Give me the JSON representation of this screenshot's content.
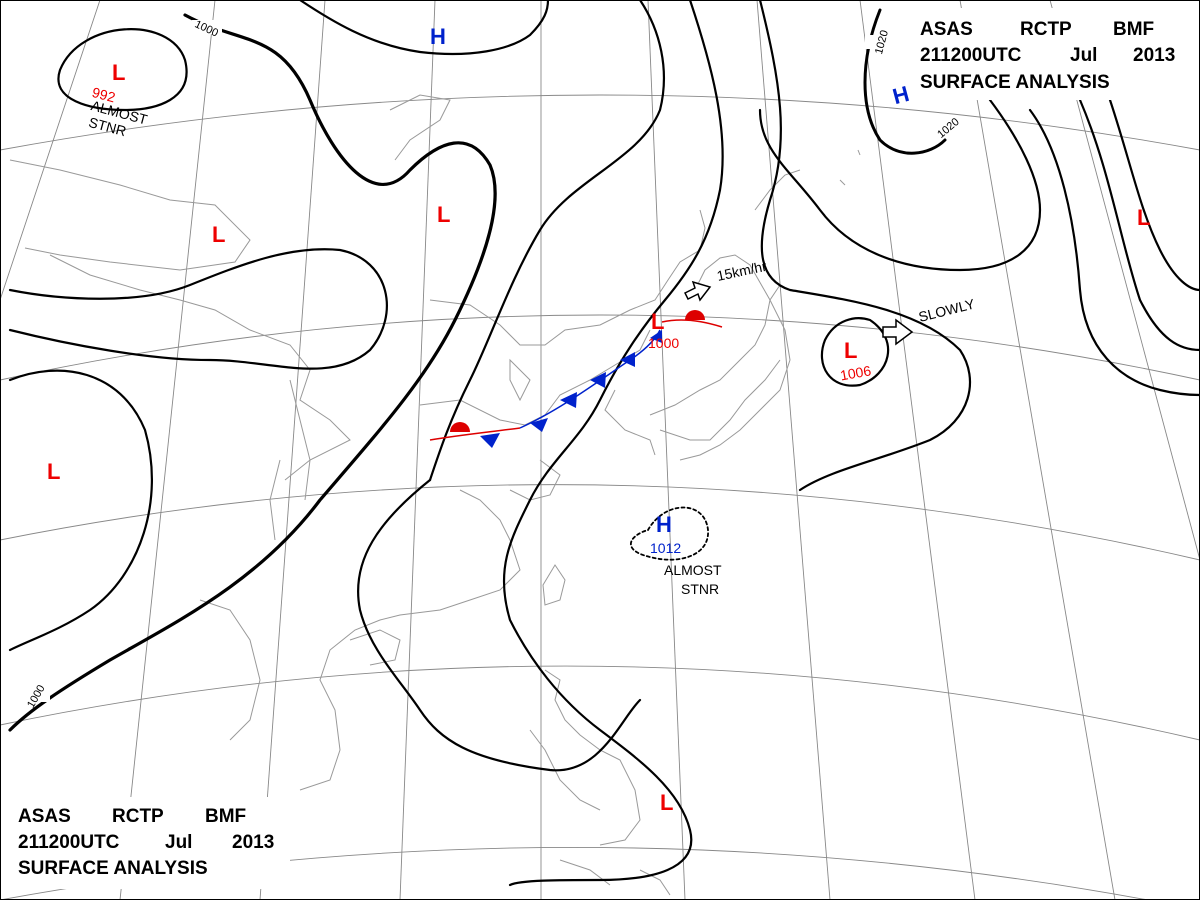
{
  "header": {
    "line1": [
      "ASAS",
      "RCTP",
      "BMF"
    ],
    "line2": [
      "211200UTC",
      "Jul",
      "2013"
    ],
    "line3": "SURFACE ANALYSIS"
  },
  "colors": {
    "low": "#ee0000",
    "high": "#0022cc",
    "isobar": "#000000",
    "coast": "#888888",
    "grid": "#888888",
    "warm_front": "#dd0000",
    "cold_front": "#0022cc"
  },
  "pressure_systems": [
    {
      "type": "L",
      "value": "992",
      "note": "ALMOST STNR"
    },
    {
      "type": "L",
      "value": "",
      "note": ""
    },
    {
      "type": "L",
      "value": "",
      "note": ""
    },
    {
      "type": "L",
      "value": "",
      "note": ""
    },
    {
      "type": "L",
      "value": "1000",
      "note": "",
      "motion": "15km/hr"
    },
    {
      "type": "L",
      "value": "1006",
      "note": "",
      "motion": "SLOWLY"
    },
    {
      "type": "L",
      "value": "",
      "note": ""
    },
    {
      "type": "L",
      "value": "",
      "note": ""
    },
    {
      "type": "H",
      "value": "",
      "note": ""
    },
    {
      "type": "H",
      "value": "",
      "note": ""
    },
    {
      "type": "H",
      "value": "1012",
      "note": "ALMOST STNR"
    }
  ],
  "isobar_labels": [
    "1000",
    "1000",
    "1020",
    "1020"
  ],
  "icons": [
    "motion-arrow-icon",
    "warm-front-icon",
    "cold-front-icon",
    "stationary-front-icon"
  ]
}
